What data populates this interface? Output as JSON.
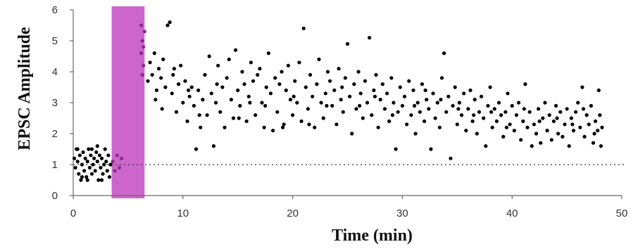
{
  "chart_data": {
    "type": "scatter",
    "xlabel": "Time (min)",
    "ylabel": "EPSC Amplitude",
    "xlim": [
      0,
      50
    ],
    "ylim": [
      0,
      6
    ],
    "xticks": [
      0,
      10,
      20,
      30,
      40,
      50
    ],
    "yticks": [
      0,
      1,
      2,
      3,
      4,
      5,
      6
    ],
    "baseline": {
      "y": 1,
      "style": "dotted"
    },
    "highlight_band": {
      "x_start": 3.5,
      "x_end": 6.5,
      "color": "#cc66cc"
    },
    "point_color": "#000000",
    "highlight_point_color": "#8a2a8a",
    "series": [
      {
        "points": [
          [
            0.1,
            1.2
          ],
          [
            0.2,
            0.9
          ],
          [
            0.3,
            1.5
          ],
          [
            0.4,
            1.1
          ],
          [
            0.5,
            0.7
          ],
          [
            0.6,
            1.3
          ],
          [
            0.7,
            0.5
          ],
          [
            0.8,
            1.0
          ],
          [
            0.9,
            1.4
          ],
          [
            1.0,
            0.8
          ],
          [
            1.1,
            1.2
          ],
          [
            1.2,
            0.6
          ],
          [
            1.3,
            1.1
          ],
          [
            1.4,
            1.5
          ],
          [
            1.5,
            0.9
          ],
          [
            1.6,
            1.3
          ],
          [
            1.7,
            0.7
          ],
          [
            1.8,
            1.0
          ],
          [
            1.9,
            1.2
          ],
          [
            2.0,
            0.8
          ],
          [
            2.1,
            1.4
          ],
          [
            2.2,
            1.1
          ],
          [
            2.3,
            0.5
          ],
          [
            2.4,
            1.3
          ],
          [
            2.5,
            0.9
          ],
          [
            2.6,
            1.2
          ],
          [
            2.7,
            0.7
          ],
          [
            2.8,
            1.0
          ],
          [
            2.9,
            1.5
          ],
          [
            3.0,
            1.1
          ],
          [
            3.1,
            0.8
          ],
          [
            3.2,
            1.3
          ],
          [
            3.3,
            0.6
          ],
          [
            3.4,
            1.0
          ],
          [
            0.4,
            1.5
          ],
          [
            1.3,
            0.5
          ],
          [
            2.2,
            1.6
          ],
          [
            0.8,
            0.6
          ],
          [
            1.7,
            1.5
          ],
          [
            2.6,
            0.5
          ],
          [
            3.6,
            1.1
          ],
          [
            3.8,
            0.8
          ],
          [
            4.0,
            1.3
          ],
          [
            4.2,
            0.9
          ],
          [
            4.4,
            1.2
          ],
          [
            6.2,
            5.5
          ],
          [
            6.3,
            5.0
          ],
          [
            6.2,
            4.6
          ],
          [
            6.4,
            4.2
          ],
          [
            6.3,
            3.9
          ],
          [
            6.5,
            5.3
          ],
          [
            6.4,
            4.8
          ],
          [
            6.8,
            3.7
          ],
          [
            7.0,
            4.3
          ],
          [
            7.2,
            3.9
          ],
          [
            7.4,
            4.6
          ],
          [
            7.6,
            3.4
          ],
          [
            7.8,
            4.1
          ],
          [
            8.0,
            3.8
          ],
          [
            8.2,
            4.4
          ],
          [
            8.4,
            3.5
          ],
          [
            8.6,
            5.5
          ],
          [
            8.8,
            5.6
          ],
          [
            9.0,
            3.3
          ],
          [
            9.2,
            4.1
          ],
          [
            9.4,
            2.7
          ],
          [
            9.6,
            3.6
          ],
          [
            9.8,
            4.2
          ],
          [
            10.0,
            3.0
          ],
          [
            10.2,
            3.7
          ],
          [
            10.4,
            2.4
          ],
          [
            10.6,
            3.2
          ],
          [
            10.8,
            3.5
          ],
          [
            11.0,
            2.9
          ],
          [
            11.2,
            1.5
          ],
          [
            11.4,
            3.4
          ],
          [
            11.6,
            2.2
          ],
          [
            11.8,
            3.1
          ],
          [
            12.0,
            3.9
          ],
          [
            12.2,
            2.6
          ],
          [
            12.4,
            4.5
          ],
          [
            12.6,
            3.3
          ],
          [
            12.8,
            1.6
          ],
          [
            13.0,
            3.0
          ],
          [
            13.2,
            4.2
          ],
          [
            13.4,
            2.7
          ],
          [
            13.6,
            3.5
          ],
          [
            13.8,
            2.2
          ],
          [
            14.0,
            3.8
          ],
          [
            14.2,
            4.4
          ],
          [
            14.4,
            3.1
          ],
          [
            14.6,
            2.5
          ],
          [
            14.8,
            4.7
          ],
          [
            15.0,
            3.4
          ],
          [
            15.2,
            2.9
          ],
          [
            15.4,
            4.0
          ],
          [
            15.6,
            3.6
          ],
          [
            15.8,
            2.4
          ],
          [
            16.0,
            3.2
          ],
          [
            16.2,
            4.3
          ],
          [
            16.4,
            3.7
          ],
          [
            16.6,
            2.6
          ],
          [
            16.8,
            3.9
          ],
          [
            17.0,
            4.1
          ],
          [
            17.2,
            3.0
          ],
          [
            17.4,
            2.2
          ],
          [
            17.6,
            3.5
          ],
          [
            17.8,
            4.6
          ],
          [
            18.0,
            3.3
          ],
          [
            18.2,
            2.1
          ],
          [
            18.4,
            3.8
          ],
          [
            18.6,
            2.7
          ],
          [
            18.8,
            3.6
          ],
          [
            19.0,
            4.0
          ],
          [
            19.2,
            2.3
          ],
          [
            19.4,
            3.4
          ],
          [
            19.6,
            4.2
          ],
          [
            19.8,
            3.1
          ],
          [
            20.0,
            2.6
          ],
          [
            20.2,
            3.7
          ],
          [
            20.4,
            3.0
          ],
          [
            20.6,
            4.3
          ],
          [
            20.8,
            2.4
          ],
          [
            21.0,
            5.4
          ],
          [
            21.2,
            3.5
          ],
          [
            21.4,
            2.8
          ],
          [
            21.6,
            3.9
          ],
          [
            21.8,
            3.2
          ],
          [
            22.0,
            2.2
          ],
          [
            22.2,
            3.6
          ],
          [
            22.4,
            4.4
          ],
          [
            22.6,
            3.0
          ],
          [
            22.8,
            2.5
          ],
          [
            23.0,
            3.3
          ],
          [
            23.2,
            4.0
          ],
          [
            23.4,
            3.7
          ],
          [
            23.6,
            2.9
          ],
          [
            23.8,
            3.4
          ],
          [
            24.0,
            2.3
          ],
          [
            24.2,
            4.1
          ],
          [
            24.4,
            3.1
          ],
          [
            24.6,
            2.7
          ],
          [
            24.8,
            3.8
          ],
          [
            25.0,
            4.9
          ],
          [
            25.2,
            3.2
          ],
          [
            25.4,
            2.0
          ],
          [
            25.6,
            3.6
          ],
          [
            25.8,
            2.8
          ],
          [
            26.0,
            4.0
          ],
          [
            26.2,
            3.3
          ],
          [
            26.4,
            2.5
          ],
          [
            26.6,
            3.7
          ],
          [
            26.8,
            3.0
          ],
          [
            27.0,
            5.1
          ],
          [
            27.2,
            2.6
          ],
          [
            27.4,
            3.4
          ],
          [
            27.6,
            3.9
          ],
          [
            27.8,
            2.2
          ],
          [
            28.0,
            3.1
          ],
          [
            28.2,
            3.6
          ],
          [
            28.4,
            2.8
          ],
          [
            28.6,
            3.3
          ],
          [
            28.8,
            2.4
          ],
          [
            29.0,
            3.8
          ],
          [
            29.2,
            3.0
          ],
          [
            29.4,
            1.5
          ],
          [
            29.6,
            2.7
          ],
          [
            29.8,
            3.5
          ],
          [
            30.0,
            2.9
          ],
          [
            30.2,
            3.2
          ],
          [
            30.4,
            2.3
          ],
          [
            30.6,
            3.7
          ],
          [
            30.8,
            2.6
          ],
          [
            31.0,
            3.4
          ],
          [
            31.2,
            2.0
          ],
          [
            31.4,
            3.0
          ],
          [
            31.6,
            2.7
          ],
          [
            31.8,
            3.6
          ],
          [
            32.0,
            2.4
          ],
          [
            32.2,
            3.1
          ],
          [
            32.4,
            2.8
          ],
          [
            32.6,
            1.5
          ],
          [
            32.8,
            3.3
          ],
          [
            33.0,
            2.5
          ],
          [
            33.2,
            3.0
          ],
          [
            33.4,
            2.2
          ],
          [
            33.6,
            3.8
          ],
          [
            33.8,
            4.6
          ],
          [
            34.0,
            2.7
          ],
          [
            34.2,
            3.2
          ],
          [
            34.4,
            1.2
          ],
          [
            34.6,
            2.9
          ],
          [
            34.8,
            3.5
          ],
          [
            35.0,
            2.3
          ],
          [
            35.2,
            3.0
          ],
          [
            35.4,
            2.6
          ],
          [
            35.6,
            3.3
          ],
          [
            35.8,
            2.1
          ],
          [
            36.0,
            2.8
          ],
          [
            36.2,
            3.4
          ],
          [
            36.4,
            2.4
          ],
          [
            36.6,
            3.1
          ],
          [
            36.8,
            2.0
          ],
          [
            37.0,
            2.7
          ],
          [
            37.2,
            3.2
          ],
          [
            37.4,
            2.5
          ],
          [
            37.6,
            1.6
          ],
          [
            37.8,
            2.9
          ],
          [
            38.0,
            3.5
          ],
          [
            38.2,
            2.2
          ],
          [
            38.4,
            2.8
          ],
          [
            38.6,
            2.4
          ],
          [
            38.8,
            3.0
          ],
          [
            39.0,
            2.6
          ],
          [
            39.2,
            1.9
          ],
          [
            39.4,
            2.7
          ],
          [
            39.6,
            3.3
          ],
          [
            39.8,
            2.3
          ],
          [
            40.0,
            2.9
          ],
          [
            40.2,
            2.1
          ],
          [
            40.4,
            2.6
          ],
          [
            40.6,
            3.0
          ],
          [
            40.8,
            1.8
          ],
          [
            41.0,
            2.4
          ],
          [
            41.2,
            3.6
          ],
          [
            41.4,
            2.2
          ],
          [
            41.6,
            2.7
          ],
          [
            41.8,
            1.6
          ],
          [
            42.0,
            2.3
          ],
          [
            42.2,
            2.0
          ],
          [
            42.4,
            2.8
          ],
          [
            42.6,
            1.7
          ],
          [
            42.8,
            2.5
          ],
          [
            43.0,
            3.0
          ],
          [
            43.2,
            2.1
          ],
          [
            43.4,
            2.6
          ],
          [
            43.6,
            1.8
          ],
          [
            43.8,
            2.4
          ],
          [
            44.0,
            2.9
          ],
          [
            44.2,
            2.0
          ],
          [
            44.4,
            2.7
          ],
          [
            44.6,
            1.9
          ],
          [
            44.8,
            2.3
          ],
          [
            45.0,
            2.8
          ],
          [
            45.2,
            1.6
          ],
          [
            45.4,
            2.5
          ],
          [
            45.6,
            2.1
          ],
          [
            45.8,
            2.7
          ],
          [
            46.0,
            3.0
          ],
          [
            46.2,
            2.2
          ],
          [
            46.4,
            3.5
          ],
          [
            46.6,
            1.9
          ],
          [
            46.8,
            2.6
          ],
          [
            47.0,
            2.3
          ],
          [
            47.2,
            2.9
          ],
          [
            47.4,
            1.7
          ],
          [
            47.6,
            2.4
          ],
          [
            47.8,
            2.1
          ],
          [
            48.0,
            2.6
          ],
          [
            48.1,
            1.6
          ],
          [
            48.2,
            2.2
          ],
          [
            47.9,
            3.4
          ],
          [
            7.5,
            3.1
          ],
          [
            8.1,
            2.8
          ],
          [
            9.1,
            3.9
          ],
          [
            10.5,
            3.4
          ],
          [
            11.5,
            2.6
          ],
          [
            13.1,
            3.6
          ],
          [
            15.1,
            2.5
          ],
          [
            16.1,
            3.0
          ],
          [
            17.5,
            2.9
          ],
          [
            19.1,
            2.2
          ],
          [
            20.1,
            3.2
          ],
          [
            21.5,
            2.3
          ],
          [
            23.1,
            2.9
          ],
          [
            24.5,
            3.5
          ],
          [
            26.1,
            2.9
          ],
          [
            27.5,
            3.2
          ],
          [
            29.1,
            2.6
          ],
          [
            31.1,
            2.9
          ],
          [
            32.1,
            3.4
          ],
          [
            33.5,
            3.1
          ],
          [
            35.1,
            2.8
          ],
          [
            36.5,
            2.6
          ],
          [
            38.1,
            2.7
          ],
          [
            39.5,
            2.2
          ],
          [
            41.1,
            2.8
          ],
          [
            42.5,
            2.4
          ],
          [
            44.1,
            2.5
          ],
          [
            45.5,
            2.3
          ],
          [
            46.5,
            2.8
          ],
          [
            47.5,
            2.0
          ]
        ]
      }
    ]
  }
}
